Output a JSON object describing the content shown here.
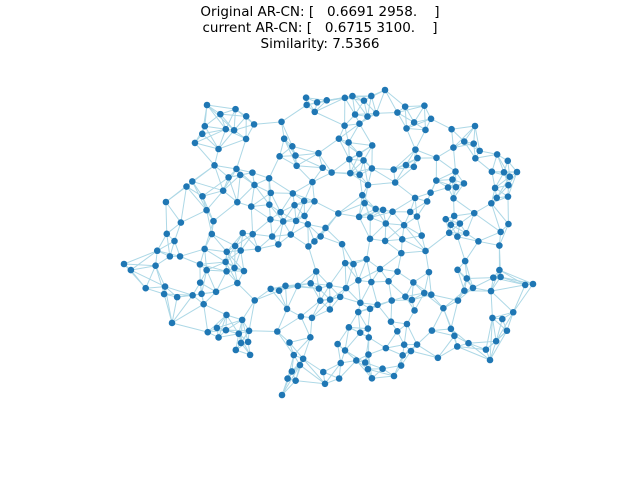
{
  "title": {
    "line1": "Original AR-CN: [   0.6691 2958.    ]",
    "line2": "current AR-CN: [   0.6715 3100.    ]",
    "line3": "Similarity: 7.5366"
  },
  "graph": {
    "node_color": "#1f77b4",
    "edge_color": "#add8e6",
    "node_count_hint": "approx 300 nodes shown"
  }
}
